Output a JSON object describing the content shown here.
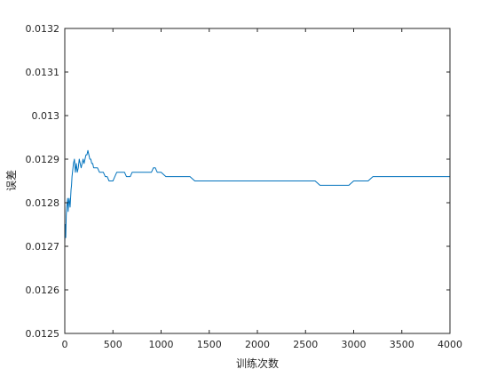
{
  "chart_data": {
    "type": "line",
    "title": "",
    "xlabel": "训练次数",
    "ylabel": "误差",
    "xlim": [
      0,
      4000
    ],
    "ylim": [
      0.0125,
      0.0132
    ],
    "x_ticks": [
      0,
      500,
      1000,
      1500,
      2000,
      2500,
      3000,
      3500,
      4000
    ],
    "x_tick_labels": [
      "0",
      "500",
      "1000",
      "1500",
      "2000",
      "2500",
      "3000",
      "3500",
      "4000"
    ],
    "y_ticks": [
      0.0125,
      0.0126,
      0.0127,
      0.0128,
      0.0129,
      0.013,
      0.0131,
      0.0132
    ],
    "y_tick_labels": [
      "0.0125",
      "0.0126",
      "0.0127",
      "0.0128",
      "0.0129",
      "0.013",
      "0.0131",
      "0.0132"
    ],
    "grid": false,
    "line_color": "#0072BD",
    "axis_color": "#262626",
    "series": [
      {
        "x": [
          0,
          5,
          10,
          15,
          20,
          25,
          30,
          35,
          40,
          45,
          50,
          55,
          60,
          65,
          70,
          75,
          80,
          90,
          100,
          110,
          120,
          130,
          140,
          150,
          160,
          170,
          180,
          190,
          200,
          210,
          220,
          230,
          240,
          250,
          260,
          270,
          280,
          290,
          300,
          320,
          340,
          360,
          380,
          400,
          420,
          440,
          460,
          480,
          500,
          520,
          540,
          560,
          580,
          600,
          620,
          640,
          660,
          680,
          700,
          720,
          740,
          760,
          780,
          800,
          820,
          840,
          860,
          880,
          900,
          920,
          940,
          960,
          980,
          1000,
          1050,
          1100,
          1150,
          1200,
          1250,
          1300,
          1350,
          1400,
          1450,
          1500,
          1550,
          1600,
          1650,
          1700,
          1750,
          1800,
          1850,
          1900,
          1950,
          2000,
          2050,
          2100,
          2150,
          2200,
          2250,
          2300,
          2350,
          2400,
          2450,
          2500,
          2550,
          2600,
          2650,
          2700,
          2750,
          2800,
          2850,
          2900,
          2950,
          3000,
          3050,
          3100,
          3150,
          3200,
          3250,
          3300,
          3350,
          3400,
          3450,
          3500,
          3550,
          3600,
          3650,
          3700,
          3750,
          3800,
          3850,
          3900,
          3950,
          4000
        ],
        "y": [
          0.01271,
          0.01275,
          0.01272,
          0.01277,
          0.01279,
          0.0128,
          0.01281,
          0.01278,
          0.0128,
          0.01281,
          0.0128,
          0.01279,
          0.01281,
          0.01283,
          0.01284,
          0.01286,
          0.01287,
          0.01289,
          0.0129,
          0.01287,
          0.01289,
          0.01287,
          0.01288,
          0.0129,
          0.01289,
          0.01288,
          0.01289,
          0.0129,
          0.01289,
          0.0129,
          0.01291,
          0.01291,
          0.01292,
          0.01291,
          0.0129,
          0.0129,
          0.01289,
          0.01289,
          0.01288,
          0.01288,
          0.01288,
          0.01287,
          0.01287,
          0.01287,
          0.01286,
          0.01286,
          0.01285,
          0.01285,
          0.01285,
          0.01286,
          0.01287,
          0.01287,
          0.01287,
          0.01287,
          0.01287,
          0.01286,
          0.01286,
          0.01286,
          0.01287,
          0.01287,
          0.01287,
          0.01287,
          0.01287,
          0.01287,
          0.01287,
          0.01287,
          0.01287,
          0.01287,
          0.01287,
          0.01288,
          0.01288,
          0.01287,
          0.01287,
          0.01287,
          0.01286,
          0.01286,
          0.01286,
          0.01286,
          0.01286,
          0.01286,
          0.01285,
          0.01285,
          0.01285,
          0.01285,
          0.01285,
          0.01285,
          0.01285,
          0.01285,
          0.01285,
          0.01285,
          0.01285,
          0.01285,
          0.01285,
          0.01285,
          0.01285,
          0.01285,
          0.01285,
          0.01285,
          0.01285,
          0.01285,
          0.01285,
          0.01285,
          0.01285,
          0.01285,
          0.01285,
          0.01285,
          0.01284,
          0.01284,
          0.01284,
          0.01284,
          0.01284,
          0.01284,
          0.01284,
          0.01285,
          0.01285,
          0.01285,
          0.01285,
          0.01286,
          0.01286,
          0.01286,
          0.01286,
          0.01286,
          0.01286,
          0.01286,
          0.01286,
          0.01286,
          0.01286,
          0.01286,
          0.01286,
          0.01286,
          0.01286,
          0.01286,
          0.01286,
          0.01286
        ]
      }
    ]
  }
}
